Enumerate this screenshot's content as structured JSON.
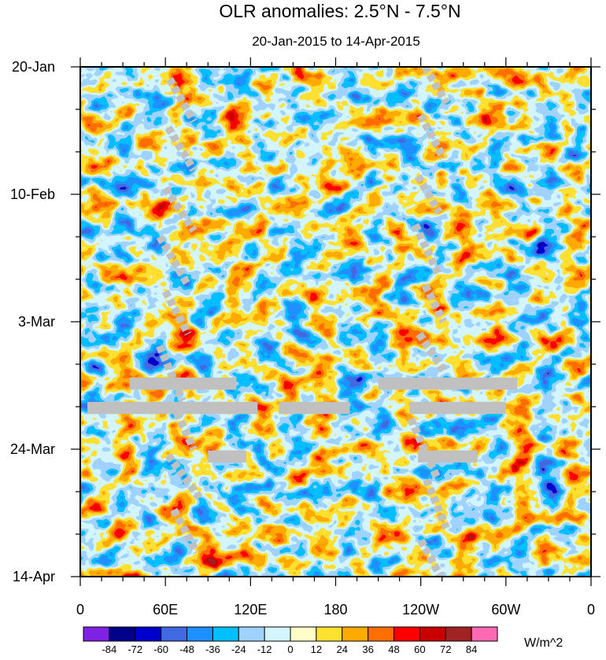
{
  "chart_data": {
    "type": "heatmap",
    "title": "OLR anomalies: 2.5°N - 7.5°N",
    "subtitle": "20-Jan-2015 to 14-Apr-2015",
    "x_ticks": [
      "0",
      "60E",
      "120E",
      "180",
      "120W",
      "60W",
      "0"
    ],
    "x_tick_values": [
      0,
      60,
      120,
      180,
      240,
      300,
      360
    ],
    "xlim": [
      0,
      360
    ],
    "y_ticks": [
      "20-Jan",
      "10-Feb",
      "3-Mar",
      "24-Mar",
      "14-Apr"
    ],
    "y_tick_days": [
      0,
      21,
      42,
      63,
      84
    ],
    "ylim_days": [
      0,
      84
    ],
    "colorbar": {
      "levels": [
        "-84",
        "-72",
        "-60",
        "-48",
        "-36",
        "-24",
        "-12",
        "0",
        "12",
        "24",
        "36",
        "48",
        "60",
        "72",
        "84"
      ],
      "colors": [
        "#7f22e6",
        "#00008b",
        "#0000cd",
        "#4169e1",
        "#1e90ff",
        "#00bfff",
        "#a0d2ff",
        "#d2f5ff",
        "#ffffc8",
        "#ffe132",
        "#ffaa00",
        "#ff6e00",
        "#ff0000",
        "#c80000",
        "#a02323",
        "#ff69b4"
      ],
      "units": "W/m^2"
    },
    "missing_color": "#c0c0c0",
    "missing_regions": [
      {
        "lon": [
          5,
          125
        ],
        "day": [
          55.2,
          57.2
        ]
      },
      {
        "lon": [
          140,
          190
        ],
        "day": [
          55.2,
          57.2
        ]
      },
      {
        "lon": [
          35,
          110
        ],
        "day": [
          51.2,
          53.2
        ]
      },
      {
        "lon": [
          210,
          308
        ],
        "day": [
          51.2,
          53.2
        ]
      },
      {
        "lon": [
          232,
          300
        ],
        "day": [
          55.2,
          57.2
        ]
      },
      {
        "lon": [
          90,
          117
        ],
        "day": [
          63.2,
          65.2
        ]
      },
      {
        "lon": [
          238,
          280
        ],
        "day": [
          63.2,
          65.2
        ]
      }
    ],
    "missing_streaks": [
      {
        "lon": [
          63,
          80
        ],
        "day": [
          2,
          9
        ]
      },
      {
        "lon": [
          62,
          80
        ],
        "day": [
          10,
          17
        ]
      },
      {
        "lon": [
          60,
          80
        ],
        "day": [
          20,
          27
        ]
      },
      {
        "lon": [
          56,
          76
        ],
        "day": [
          28,
          36
        ]
      },
      {
        "lon": [
          60,
          76
        ],
        "day": [
          37,
          44
        ]
      },
      {
        "lon": [
          56,
          72
        ],
        "day": [
          46,
          55
        ]
      },
      {
        "lon": [
          68,
          80
        ],
        "day": [
          57,
          63
        ]
      },
      {
        "lon": [
          62,
          84
        ],
        "day": [
          64,
          71
        ]
      },
      {
        "lon": [
          66,
          82
        ],
        "day": [
          73,
          80
        ]
      },
      {
        "lon": [
          243,
          258
        ],
        "day": [
          0,
          6
        ]
      },
      {
        "lon": [
          240,
          256
        ],
        "day": [
          8,
          15
        ]
      },
      {
        "lon": [
          238,
          253
        ],
        "day": [
          18,
          24
        ]
      },
      {
        "lon": [
          236,
          252
        ],
        "day": [
          26,
          34
        ]
      },
      {
        "lon": [
          243,
          256
        ],
        "day": [
          36,
          42
        ]
      },
      {
        "lon": [
          239,
          256
        ],
        "day": [
          44,
          50
        ]
      },
      {
        "lon": [
          233,
          252
        ],
        "day": [
          58,
          68
        ]
      },
      {
        "lon": [
          244,
          258
        ],
        "day": [
          68,
          76
        ]
      },
      {
        "lon": [
          240,
          254
        ],
        "day": [
          78,
          84
        ]
      }
    ]
  }
}
